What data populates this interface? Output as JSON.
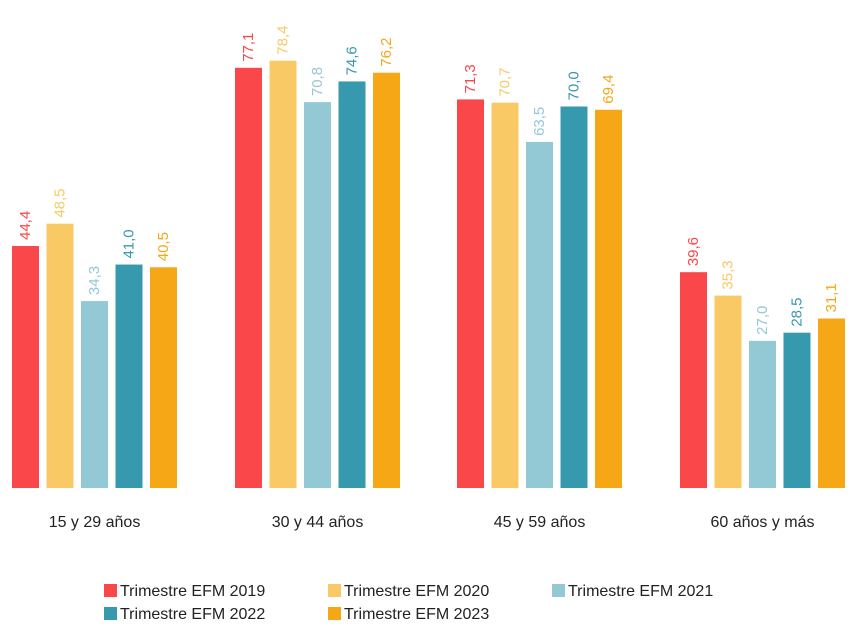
{
  "chart_data": {
    "type": "bar",
    "categories": [
      "15 y 29 años",
      "30 y 44 años",
      "45 y 59 años",
      "60 años y más"
    ],
    "series": [
      {
        "name": "Trimestre EFM 2019",
        "color": "#F9474A",
        "values": [
          44.4,
          77.1,
          71.3,
          39.6
        ],
        "labels": [
          "44,4",
          "77,1",
          "71,3",
          "39,6"
        ]
      },
      {
        "name": "Trimestre EFM 2020",
        "color": "#F9C965",
        "values": [
          48.5,
          78.4,
          70.7,
          35.3
        ],
        "labels": [
          "48,5",
          "78,4",
          "70,7",
          "35,3"
        ]
      },
      {
        "name": "Trimestre EFM 2021",
        "color": "#92C9D4",
        "values": [
          34.3,
          70.8,
          63.5,
          27.0
        ],
        "labels": [
          "34,3",
          "70,8",
          "63,5",
          "27,0"
        ]
      },
      {
        "name": "Trimestre EFM 2022",
        "color": "#3699AE",
        "values": [
          41.0,
          74.6,
          70.0,
          28.5
        ],
        "labels": [
          "41,0",
          "74,6",
          "70,0",
          "28,5"
        ]
      },
      {
        "name": "Trimestre EFM 2023",
        "color": "#F5A716",
        "values": [
          40.5,
          76.2,
          69.4,
          31.1
        ],
        "labels": [
          "40,5",
          "76,2",
          "69,4",
          "31,1"
        ]
      }
    ],
    "ylim": [
      0,
      80
    ],
    "grid": false,
    "legend_position": "bottom"
  }
}
